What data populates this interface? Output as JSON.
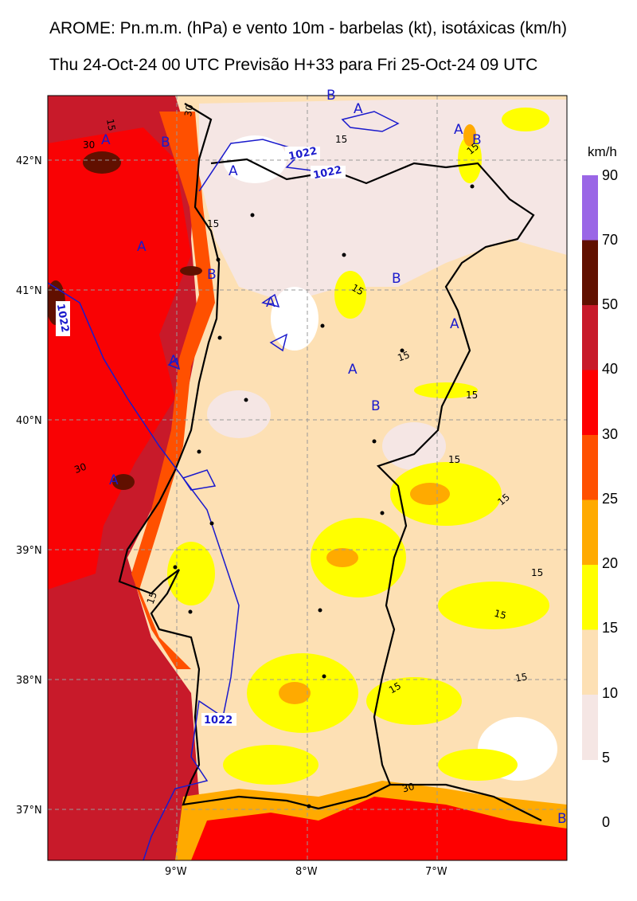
{
  "title_line1": "AROME: Pn.m.m. (hPa) e vento 10m - barbelas (kt), isotáxicas (km/h)",
  "title_line2": "Thu 24-Oct-24 00 UTC Previsão H+33 para Fri 25-Oct-24 09 UTC",
  "colorbar": {
    "unit": "km/h",
    "levels": [
      "90",
      "70",
      "50",
      "40",
      "30",
      "25",
      "20",
      "15",
      "10",
      "5",
      "0"
    ],
    "bands": [
      {
        "from": "70",
        "to": "90",
        "color": "#9a66e6"
      },
      {
        "from": "50",
        "to": "70",
        "color": "#611000"
      },
      {
        "from": "40",
        "to": "50",
        "color": "#c81a2a"
      },
      {
        "from": "30",
        "to": "40",
        "color": "#fe0000"
      },
      {
        "from": "25",
        "to": "30",
        "color": "#ff5000"
      },
      {
        "from": "20",
        "to": "25",
        "color": "#ffaa00"
      },
      {
        "from": "15",
        "to": "20",
        "color": "#ffff00"
      },
      {
        "from": "10",
        "to": "15",
        "color": "#fde0b4"
      },
      {
        "from": "5",
        "to": "10",
        "color": "#f5e6e4"
      }
    ]
  },
  "axes": {
    "lat_ticks": [
      "42°N",
      "41°N",
      "40°N",
      "39°N",
      "38°N",
      "37°N"
    ],
    "lon_ticks": [
      "9°W",
      "8°W",
      "7°W"
    ]
  },
  "pressure_labels": [
    "1022",
    "1022",
    "1022",
    "1022"
  ],
  "pressure_centers": [
    "A",
    "B",
    "B",
    "A",
    "A",
    "B",
    "A",
    "B",
    "A",
    "B",
    "A",
    "A",
    "B",
    "A",
    "A",
    "A",
    "B"
  ],
  "isotach_labels": [
    "15",
    "30",
    "30",
    "15",
    "15",
    "15",
    "15",
    "15",
    "15",
    "15",
    "15",
    "15",
    "15",
    "15",
    "15",
    "30",
    "30",
    "15"
  ],
  "colors": {
    "pressure_contour": "#1a1acc",
    "coastline": "#000000",
    "grid": "#999999"
  }
}
